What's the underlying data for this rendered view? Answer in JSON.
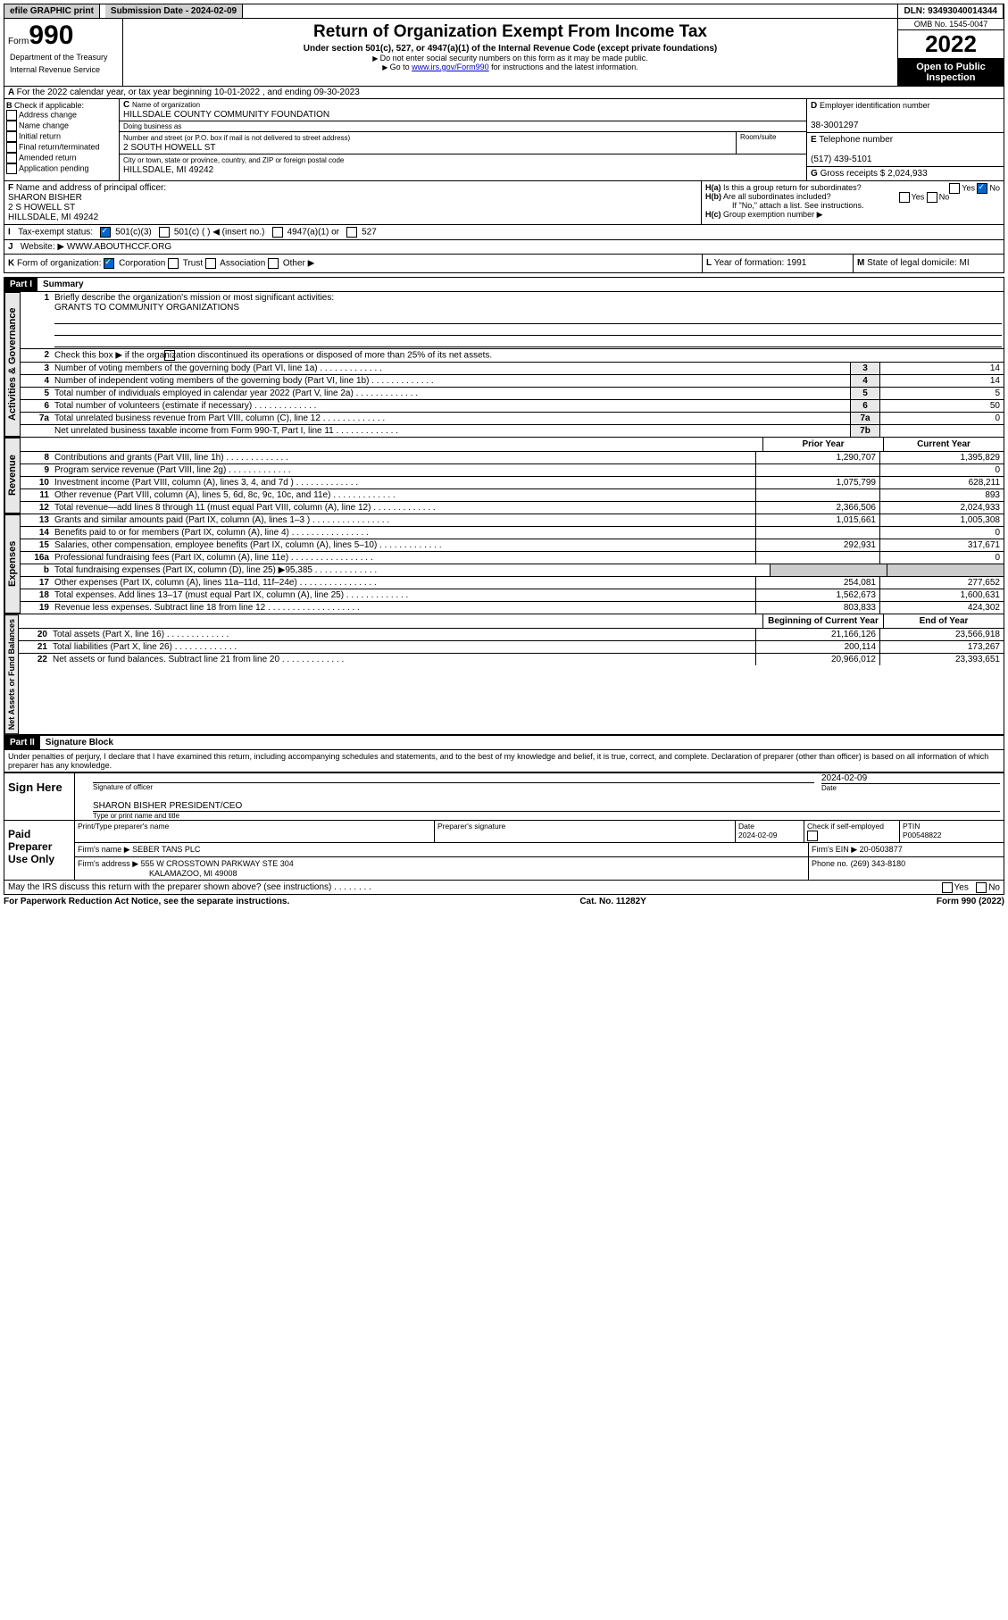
{
  "topbar": {
    "efile": "efile GRAPHIC print",
    "subdate_label": "Submission Date - 2024-02-09",
    "dln": "DLN: 93493040014344"
  },
  "header": {
    "form": "990",
    "form_prefix": "Form",
    "title": "Return of Organization Exempt From Income Tax",
    "subtitle": "Under section 501(c), 527, or 4947(a)(1) of the Internal Revenue Code (except private foundations)",
    "warn": "Do not enter social security numbers on this form as it may be made public.",
    "goto_pre": "Go to ",
    "goto_link": "www.irs.gov/Form990",
    "goto_post": " for instructions and the latest information.",
    "omb": "OMB No. 1545-0047",
    "year": "2022",
    "open": "Open to Public Inspection",
    "dept": "Department of the Treasury",
    "irs": "Internal Revenue Service"
  },
  "A": {
    "text": "For the 2022 calendar year, or tax year beginning 10-01-2022   , and ending 09-30-2023"
  },
  "B": {
    "label": "Check if applicable:",
    "items": [
      "Address change",
      "Name change",
      "Initial return",
      "Final return/terminated",
      "Amended return",
      "Application pending"
    ]
  },
  "C": {
    "name_label": "Name of organization",
    "name": "HILLSDALE COUNTY COMMUNITY FOUNDATION",
    "dba_label": "Doing business as",
    "street_label": "Number and street (or P.O. box if mail is not delivered to street address)",
    "room_label": "Room/suite",
    "street": "2 SOUTH HOWELL ST",
    "city_label": "City or town, state or province, country, and ZIP or foreign postal code",
    "city": "HILLSDALE, MI  49242"
  },
  "D": {
    "label": "Employer identification number",
    "value": "38-3001297"
  },
  "E": {
    "label": "Telephone number",
    "value": "(517) 439-5101"
  },
  "G": {
    "label": "Gross receipts $",
    "value": "2,024,933"
  },
  "F": {
    "label": "Name and address of principal officer:",
    "name": "SHARON BISHER",
    "addr1": "2 S HOWELL ST",
    "addr2": "HILLSDALE, MI  49242"
  },
  "H": {
    "a": "Is this a group return for subordinates?",
    "b": "Are all subordinates included?",
    "note": "If \"No,\" attach a list. See instructions.",
    "c": "Group exemption number ▶"
  },
  "I": {
    "label": "Tax-exempt status:",
    "opts": [
      "501(c)(3)",
      "501(c) (  ) ◀ (insert no.)",
      "4947(a)(1) or",
      "527"
    ]
  },
  "J": {
    "label": "Website: ▶",
    "value": "WWW.ABOUTHCCF.ORG"
  },
  "K": {
    "label": "Form of organization:",
    "opts": [
      "Corporation",
      "Trust",
      "Association",
      "Other ▶"
    ]
  },
  "L": {
    "label": "Year of formation:",
    "value": "1991"
  },
  "M": {
    "label": "State of legal domicile:",
    "value": "MI"
  },
  "partI": {
    "hdr": "Part I",
    "title": "Summary"
  },
  "summary": {
    "mission_label": "Briefly describe the organization's mission or most significant activities:",
    "mission": "GRANTS TO COMMUNITY ORGANIZATIONS",
    "line2": "Check this box ▶        if the organization discontinued its operations or disposed of more than 25% of its net assets.",
    "lines_gov": [
      {
        "n": "3",
        "d": "Number of voting members of the governing body (Part VI, line 1a)",
        "c": "3",
        "v": "14"
      },
      {
        "n": "4",
        "d": "Number of independent voting members of the governing body (Part VI, line 1b)",
        "c": "4",
        "v": "14"
      },
      {
        "n": "5",
        "d": "Total number of individuals employed in calendar year 2022 (Part V, line 2a)",
        "c": "5",
        "v": "5"
      },
      {
        "n": "6",
        "d": "Total number of volunteers (estimate if necessary)",
        "c": "6",
        "v": "50"
      },
      {
        "n": "7a",
        "d": "Total unrelated business revenue from Part VIII, column (C), line 12",
        "c": "7a",
        "v": "0"
      },
      {
        "n": "",
        "d": "Net unrelated business taxable income from Form 990-T, Part I, line 11",
        "c": "7b",
        "v": ""
      }
    ],
    "col_prior": "Prior Year",
    "col_current": "Current Year",
    "lines_rev": [
      {
        "n": "8",
        "d": "Contributions and grants (Part VIII, line 1h)",
        "p": "1,290,707",
        "c": "1,395,829"
      },
      {
        "n": "9",
        "d": "Program service revenue (Part VIII, line 2g)",
        "p": "",
        "c": "0"
      },
      {
        "n": "10",
        "d": "Investment income (Part VIII, column (A), lines 3, 4, and 7d )",
        "p": "1,075,799",
        "c": "628,211"
      },
      {
        "n": "11",
        "d": "Other revenue (Part VIII, column (A), lines 5, 6d, 8c, 9c, 10c, and 11e)",
        "p": "",
        "c": "893"
      },
      {
        "n": "12",
        "d": "Total revenue—add lines 8 through 11 (must equal Part VIII, column (A), line 12)",
        "p": "2,366,506",
        "c": "2,024,933"
      }
    ],
    "lines_exp": [
      {
        "n": "13",
        "d": "Grants and similar amounts paid (Part IX, column (A), lines 1–3 )   .   .   .",
        "p": "1,015,661",
        "c": "1,005,308"
      },
      {
        "n": "14",
        "d": "Benefits paid to or for members (Part IX, column (A), line 4)   .   .   .",
        "p": "",
        "c": "0"
      },
      {
        "n": "15",
        "d": "Salaries, other compensation, employee benefits (Part IX, column (A), lines 5–10)",
        "p": "292,931",
        "c": "317,671"
      },
      {
        "n": "16a",
        "d": "Professional fundraising fees (Part IX, column (A), line 11e)   .   .   .   .",
        "p": "",
        "c": "0"
      },
      {
        "n": "b",
        "d": "Total fundraising expenses (Part IX, column (D), line 25) ▶95,385",
        "p": "GRAY",
        "c": "GRAY"
      },
      {
        "n": "17",
        "d": "Other expenses (Part IX, column (A), lines 11a–11d, 11f–24e)  .   .   .",
        "p": "254,081",
        "c": "277,652"
      },
      {
        "n": "18",
        "d": "Total expenses. Add lines 13–17 (must equal Part IX, column (A), line 25)",
        "p": "1,562,673",
        "c": "1,600,631"
      },
      {
        "n": "19",
        "d": "Revenue less expenses. Subtract line 18 from line 12   .   .   .   .   .   .",
        "p": "803,833",
        "c": "424,302"
      }
    ],
    "col_begin": "Beginning of Current Year",
    "col_end": "End of Year",
    "lines_net": [
      {
        "n": "20",
        "d": "Total assets (Part X, line 16)",
        "p": "21,166,126",
        "c": "23,566,918"
      },
      {
        "n": "21",
        "d": "Total liabilities (Part X, line 26)",
        "p": "200,114",
        "c": "173,267"
      },
      {
        "n": "22",
        "d": "Net assets or fund balances. Subtract line 21 from line 20",
        "p": "20,966,012",
        "c": "23,393,651"
      }
    ]
  },
  "sides": {
    "gov": "Activities & Governance",
    "rev": "Revenue",
    "exp": "Expenses",
    "net": "Net Assets or Fund Balances"
  },
  "partII": {
    "hdr": "Part II",
    "title": "Signature Block",
    "decl": "Under penalties of perjury, I declare that I have examined this return, including accompanying schedules and statements, and to the best of my knowledge and belief, it is true, correct, and complete. Declaration of preparer (other than officer) is based on all information of which preparer has any knowledge."
  },
  "sign": {
    "here": "Sign Here",
    "sig_officer": "Signature of officer",
    "date": "Date",
    "date_val": "2024-02-09",
    "name": "SHARON BISHER  PRESIDENT/CEO",
    "name_label": "Type or print name and title"
  },
  "paid": {
    "label": "Paid Preparer Use Only",
    "h1": "Print/Type preparer's name",
    "h2": "Preparer's signature",
    "h3": "Date",
    "h3v": "2024-02-09",
    "h4": "Check         if self-employed",
    "h5": "PTIN",
    "h5v": "P00548822",
    "firm_label": "Firm's name   ▶",
    "firm": "SEBER TANS PLC",
    "ein_label": "Firm's EIN ▶",
    "ein": "20-0503877",
    "addr_label": "Firm's address ▶",
    "addr": "555 W CROSSTOWN PARKWAY STE 304",
    "addr2": "KALAMAZOO, MI  49008",
    "phone_label": "Phone no.",
    "phone": "(269) 343-8180"
  },
  "discuss": "May the IRS discuss this return with the preparer shown above? (see instructions)",
  "footer": {
    "l": "For Paperwork Reduction Act Notice, see the separate instructions.",
    "m": "Cat. No. 11282Y",
    "r": "Form 990 (2022)"
  }
}
